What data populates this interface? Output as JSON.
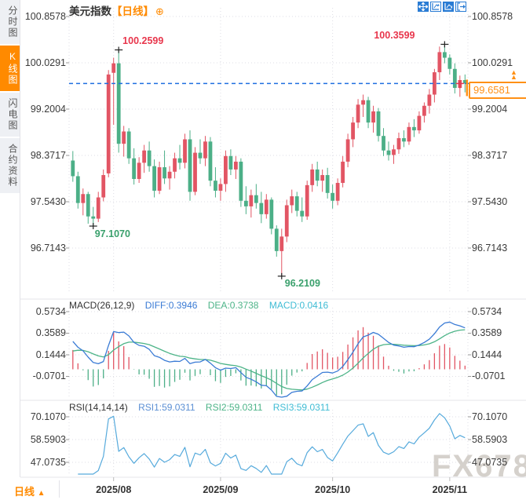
{
  "header": {
    "symbol": "美元指数",
    "period_tag": "【日线】",
    "add_glyph": "⊕"
  },
  "toolbar": {
    "icons": [
      {
        "name": "move-tool"
      },
      {
        "name": "fit-horizontal"
      },
      {
        "name": "fit-vertical"
      },
      {
        "name": "exit-chart"
      }
    ]
  },
  "sidebar": {
    "items": [
      {
        "label": "分时图",
        "selected": false
      },
      {
        "label": "K线图",
        "selected": true
      },
      {
        "label": "闪电图",
        "selected": false
      },
      {
        "label": "合约资料",
        "selected": false
      }
    ]
  },
  "bottom": {
    "period": "日线",
    "arrow": "▲"
  },
  "watermark": "FX678",
  "colors": {
    "accent_orange": "#ff8a00",
    "price_marker_orange": "#ff9015",
    "up": "#e25564",
    "down": "#4caf87",
    "diff_line": "#3a7bd5",
    "dea_line": "#4db488",
    "macd_value": "#3fbcd4",
    "rsi1": "#5b8fd4",
    "rsi2": "#4db488",
    "rsi3": "#3fbcd4",
    "rsi_line": "#56aadc",
    "price_line_blue": "#1e6fe0",
    "annotation_red": "#e8364c",
    "annotation_green": "#3aa06c",
    "icon_blue": "#2a7cd4",
    "grid": "#dedee4",
    "axis_text": "#3a3a3a"
  },
  "chart_data": [
    {
      "type": "candlestick",
      "title": "美元指数【日线】",
      "y_ticks": [
        "100.8578",
        "100.0291",
        "99.2004",
        "98.3717",
        "97.5430",
        "96.7143"
      ],
      "x_tick_labels": [
        "2025/08",
        "2025/09",
        "2025/10",
        "2025/11"
      ],
      "month_tick_indices": [
        8,
        29,
        51,
        74
      ],
      "current_price": {
        "value": 99.6581,
        "label": "99.6581"
      },
      "annotations": [
        {
          "text": "100.2599",
          "price": 100.2599,
          "index": 9,
          "kind": "high",
          "color": "#e8364c"
        },
        {
          "text": "100.3599",
          "price": 100.3599,
          "index": 73,
          "kind": "high",
          "color": "#e8364c"
        },
        {
          "text": "97.1070",
          "price": 97.107,
          "index": 4,
          "kind": "low",
          "color": "#3aa06c"
        },
        {
          "text": "96.2109",
          "price": 96.2109,
          "index": 41,
          "kind": "low",
          "color": "#3aa06c"
        }
      ],
      "ohlc": [
        [
          "2025/07/22",
          98.28,
          98.45,
          97.9,
          98.0
        ],
        [
          "2025/07/23",
          98.0,
          98.08,
          97.42,
          97.52
        ],
        [
          "2025/07/24",
          97.52,
          97.78,
          97.3,
          97.68
        ],
        [
          "2025/07/25",
          97.68,
          97.72,
          97.15,
          97.28
        ],
        [
          "2025/07/28",
          97.28,
          97.45,
          97.107,
          97.24
        ],
        [
          "2025/07/29",
          97.24,
          97.72,
          97.18,
          97.62
        ],
        [
          "2025/07/30",
          97.62,
          98.12,
          97.55,
          98.02
        ],
        [
          "2025/07/31",
          98.05,
          99.9,
          97.98,
          99.82
        ],
        [
          "2025/08/01",
          99.85,
          100.12,
          98.92,
          100.02
        ],
        [
          "2025/08/04",
          100.02,
          100.2599,
          98.42,
          98.58
        ],
        [
          "2025/08/05",
          98.58,
          98.9,
          98.35,
          98.8
        ],
        [
          "2025/08/06",
          98.8,
          98.86,
          98.22,
          98.32
        ],
        [
          "2025/08/07",
          98.32,
          98.5,
          97.85,
          97.95
        ],
        [
          "2025/08/08",
          97.95,
          98.34,
          97.88,
          98.24
        ],
        [
          "2025/08/11",
          98.24,
          98.56,
          98.06,
          98.46
        ],
        [
          "2025/08/12",
          98.46,
          98.62,
          98.08,
          98.18
        ],
        [
          "2025/08/13",
          98.18,
          98.3,
          97.62,
          97.74
        ],
        [
          "2025/08/14",
          97.74,
          98.26,
          97.68,
          98.16
        ],
        [
          "2025/08/15",
          98.16,
          98.46,
          97.86,
          97.96
        ],
        [
          "2025/08/18",
          97.96,
          98.18,
          97.76,
          98.08
        ],
        [
          "2025/08/19",
          98.08,
          98.42,
          97.96,
          98.32
        ],
        [
          "2025/08/20",
          98.32,
          98.56,
          98.12,
          98.24
        ],
        [
          "2025/08/21",
          98.24,
          98.76,
          98.14,
          98.66
        ],
        [
          "2025/08/22",
          98.66,
          98.82,
          97.56,
          97.72
        ],
        [
          "2025/08/25",
          97.72,
          98.52,
          97.66,
          98.42
        ],
        [
          "2025/08/26",
          98.42,
          98.66,
          98.22,
          98.32
        ],
        [
          "2025/08/27",
          98.32,
          98.72,
          98.18,
          98.62
        ],
        [
          "2025/08/28",
          98.62,
          98.7,
          97.82,
          97.92
        ],
        [
          "2025/08/29",
          97.92,
          98.16,
          97.62,
          97.74
        ],
        [
          "2025/09/01",
          97.74,
          97.96,
          97.56,
          97.86
        ],
        [
          "2025/09/02",
          97.86,
          98.46,
          97.72,
          98.36
        ],
        [
          "2025/09/03",
          98.36,
          98.48,
          98.02,
          98.12
        ],
        [
          "2025/09/04",
          98.12,
          98.36,
          97.95,
          98.26
        ],
        [
          "2025/09/05",
          98.26,
          98.32,
          97.45,
          97.56
        ],
        [
          "2025/09/08",
          97.56,
          97.82,
          97.32,
          97.46
        ],
        [
          "2025/09/09",
          97.46,
          97.76,
          97.26,
          97.66
        ],
        [
          "2025/09/10",
          97.66,
          97.86,
          97.42,
          97.52
        ],
        [
          "2025/09/11",
          97.52,
          97.72,
          97.16,
          97.32
        ],
        [
          "2025/09/12",
          97.32,
          97.68,
          97.24,
          97.58
        ],
        [
          "2025/09/15",
          97.58,
          97.62,
          96.96,
          97.06
        ],
        [
          "2025/09/16",
          97.06,
          97.12,
          96.56,
          96.66
        ],
        [
          "2025/09/17",
          96.66,
          97.06,
          96.2109,
          96.92
        ],
        [
          "2025/09/18",
          96.92,
          97.58,
          96.82,
          97.48
        ],
        [
          "2025/09/19",
          97.48,
          97.76,
          97.34,
          97.64
        ],
        [
          "2025/09/22",
          97.64,
          97.72,
          97.28,
          97.38
        ],
        [
          "2025/09/23",
          97.38,
          97.62,
          97.18,
          97.28
        ],
        [
          "2025/09/24",
          97.28,
          97.92,
          97.22,
          97.84
        ],
        [
          "2025/09/25",
          97.84,
          98.22,
          97.72,
          98.12
        ],
        [
          "2025/09/26",
          98.12,
          98.26,
          97.82,
          97.92
        ],
        [
          "2025/09/29",
          97.92,
          98.12,
          97.72,
          98.02
        ],
        [
          "2025/09/30",
          98.02,
          98.15,
          97.6,
          97.7
        ],
        [
          "2025/10/01",
          97.7,
          97.85,
          97.42,
          97.56
        ],
        [
          "2025/10/02",
          97.56,
          97.96,
          97.48,
          97.88
        ],
        [
          "2025/10/03",
          97.88,
          98.36,
          97.8,
          98.26
        ],
        [
          "2025/10/06",
          98.26,
          98.76,
          98.16,
          98.66
        ],
        [
          "2025/10/07",
          98.66,
          99.06,
          98.52,
          98.96
        ],
        [
          "2025/10/08",
          98.96,
          99.38,
          98.86,
          99.28
        ],
        [
          "2025/10/09",
          99.28,
          99.46,
          99.06,
          99.36
        ],
        [
          "2025/10/10",
          99.36,
          99.42,
          98.86,
          98.96
        ],
        [
          "2025/10/13",
          98.96,
          99.26,
          98.78,
          99.16
        ],
        [
          "2025/10/14",
          99.16,
          99.22,
          98.62,
          98.72
        ],
        [
          "2025/10/15",
          98.72,
          98.86,
          98.36,
          98.46
        ],
        [
          "2025/10/16",
          98.46,
          98.62,
          98.28,
          98.38
        ],
        [
          "2025/10/17",
          98.38,
          98.56,
          98.22,
          98.48
        ],
        [
          "2025/10/20",
          98.48,
          98.78,
          98.4,
          98.68
        ],
        [
          "2025/10/21",
          98.68,
          98.82,
          98.52,
          98.62
        ],
        [
          "2025/10/22",
          98.62,
          98.96,
          98.56,
          98.88
        ],
        [
          "2025/10/23",
          98.88,
          99.02,
          98.7,
          98.82
        ],
        [
          "2025/10/24",
          98.82,
          99.16,
          98.76,
          99.08
        ],
        [
          "2025/10/27",
          99.08,
          99.32,
          98.96,
          99.26
        ],
        [
          "2025/10/28",
          99.26,
          99.56,
          99.12,
          99.46
        ],
        [
          "2025/10/29",
          99.46,
          99.92,
          99.32,
          99.86
        ],
        [
          "2025/10/30",
          99.86,
          100.32,
          99.72,
          100.22
        ],
        [
          "2025/10/31",
          100.22,
          100.3599,
          100.02,
          100.12
        ],
        [
          "2025/11/03",
          100.12,
          100.18,
          99.82,
          99.92
        ],
        [
          "2025/11/04",
          99.92,
          100.02,
          99.48,
          99.58
        ],
        [
          "2025/11/05",
          99.58,
          99.8,
          99.42,
          99.72
        ],
        [
          "2025/11/06",
          99.72,
          99.82,
          99.5,
          99.6581
        ]
      ]
    },
    {
      "type": "bar+line",
      "name": "MACD",
      "label": "MACD(26,12,9)",
      "diff_label": "DIFF:0.3946",
      "dea_label": "DEA:0.3738",
      "macd_label": "MACD:0.0416",
      "y_ticks": [
        "0.5734",
        "0.3589",
        "0.1444",
        "-0.0701"
      ],
      "note": "histogram and DIFF/DEA lines derived from candlestick closes (EMA12-EMA26, signal EMA9, hist=2*(DIFF-DEA))"
    },
    {
      "type": "line",
      "name": "RSI",
      "label": "RSI(14,14,14)",
      "rsi1_label": "RSI1:59.0311",
      "rsi2_label": "RSI2:59.0311",
      "rsi3_label": "RSI3:59.0311",
      "y_ticks": [
        "70.1070",
        "58.5903",
        "47.0735"
      ],
      "note": "RSI(14) line derived from candlestick closes; three identical-parameter lines overlap"
    }
  ]
}
